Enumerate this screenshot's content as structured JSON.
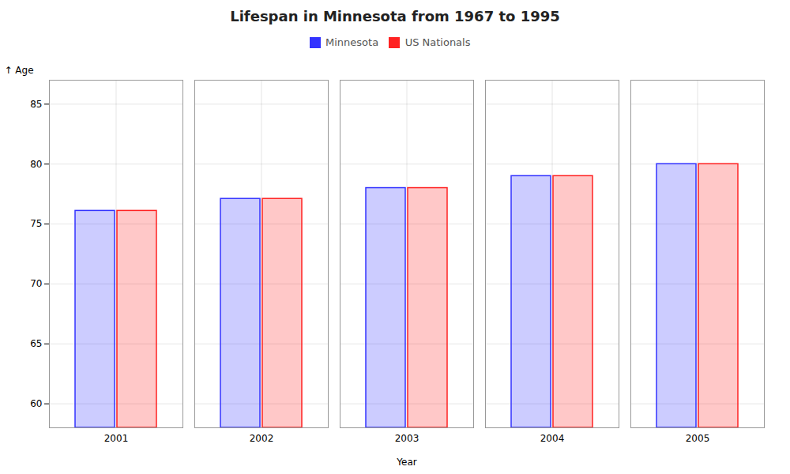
{
  "chart_data": {
    "type": "bar",
    "title": "Lifespan in Minnesota from 1967 to 1995",
    "xlabel": "Year",
    "ylabel": "Age",
    "categories": [
      "2001",
      "2002",
      "2003",
      "2004",
      "2005"
    ],
    "series": [
      {
        "name": "Minnesota",
        "color": "#3333ff",
        "values": [
          76.1,
          77.1,
          78.0,
          79.0,
          80.0
        ]
      },
      {
        "name": "US Nationals",
        "color": "#ff2222",
        "values": [
          76.1,
          77.1,
          78.0,
          79.0,
          80.0
        ]
      }
    ],
    "ylim": [
      58,
      87
    ],
    "yticks": [
      60,
      65,
      70,
      75,
      80,
      85
    ],
    "grid": true,
    "legend": "top"
  }
}
